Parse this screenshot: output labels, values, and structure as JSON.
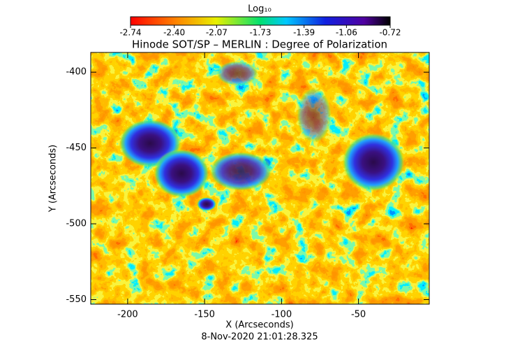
{
  "chart_data": {
    "type": "heatmap",
    "title": "Hinode SOT/SP – MERLIN : Degree of Polarization",
    "colorbar_label": "Log₁₀",
    "clim": [
      -2.74,
      -0.72
    ],
    "colorbar_ticks": [
      -2.74,
      {
        "value": -2.4,
        "label": "-2.40"
      },
      -2.07,
      -1.73,
      -1.39,
      -1.06,
      -0.72
    ],
    "x_label": "X (Arcseconds)",
    "y_label": "Y (Arcseconds)",
    "xlim": [
      -224,
      -4
    ],
    "xticks": [
      -200,
      -150,
      -100,
      -50
    ],
    "ylim": [
      -553,
      -387
    ],
    "yticks": [
      -400,
      -450,
      -500,
      -550
    ],
    "footer": "8-Nov-2020 21:01:28.325"
  }
}
